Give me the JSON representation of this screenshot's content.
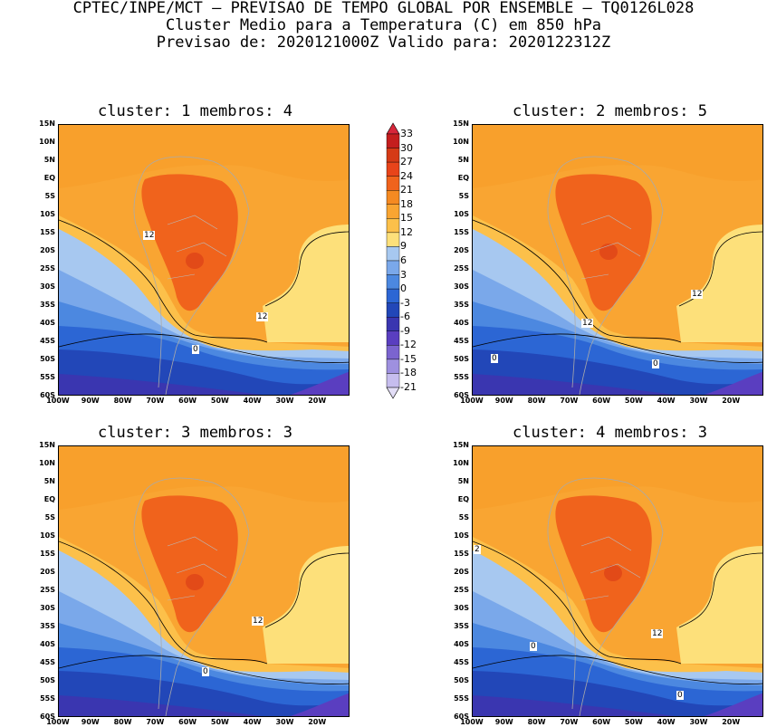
{
  "header": {
    "line1": "CPTEC/INPE/MCT — PREVISAO DE TEMPO GLOBAL POR ENSEMBLE — TQ0126L028",
    "line2": "Cluster Medio para a Temperatura (C) em 850 hPa",
    "line3": "Previsao de: 2020121000Z   Valido para: 2020122312Z"
  },
  "lat_labels": [
    "15N",
    "10N",
    "5N",
    "EQ",
    "5S",
    "10S",
    "15S",
    "20S",
    "25S",
    "30S",
    "35S",
    "40S",
    "45S",
    "50S",
    "55S",
    "60S"
  ],
  "lon_labels": [
    "100W",
    "90W",
    "80W",
    "70W",
    "60W",
    "50W",
    "40W",
    "30W",
    "20W"
  ],
  "panels": [
    {
      "title": "cluster: 1   membros: 4",
      "contour_labels": [
        "12",
        "12",
        "0"
      ]
    },
    {
      "title": "cluster: 2   membros: 5",
      "contour_labels": [
        "12",
        "12",
        "0",
        "0"
      ]
    },
    {
      "title": "cluster: 3   membros: 3",
      "contour_labels": [
        "12",
        "0"
      ]
    },
    {
      "title": "cluster: 4   membros: 3",
      "contour_labels": [
        "12",
        "2",
        "0",
        "0"
      ]
    }
  ],
  "colorbar": {
    "labels": [
      "33",
      "30",
      "27",
      "24",
      "21",
      "18",
      "15",
      "12",
      "9",
      "6",
      "3",
      "0",
      "-3",
      "-6",
      "-9",
      "-12",
      "-15",
      "-18",
      "-21"
    ],
    "colors": [
      "#d7263a",
      "#c41e1e",
      "#d53a16",
      "#e8441a",
      "#f0631c",
      "#f58a22",
      "#f9a532",
      "#fcc04a",
      "#fde07a",
      "#a7c8f0",
      "#7aa8ea",
      "#4c88e0",
      "#2c66d4",
      "#2247b8",
      "#3a36b0",
      "#5a3ec0",
      "#7b64cf",
      "#9e90df",
      "#c6bdee",
      "#e2ddf6"
    ]
  }
}
